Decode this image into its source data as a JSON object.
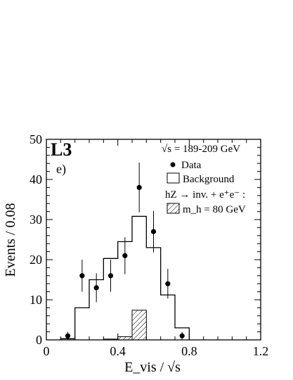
{
  "chart_data": {
    "type": "histogram",
    "experiment": "L3",
    "panel": "e)",
    "xlabel": "E_vis / √s",
    "ylabel": "Events / 0.08",
    "xlim": [
      0,
      1.2
    ],
    "ylim": [
      0,
      50
    ],
    "x_ticks": [
      "0",
      "0.4",
      "0.8",
      "1.2"
    ],
    "y_ticks": [
      "0",
      "10",
      "20",
      "30",
      "40",
      "50"
    ],
    "legend": {
      "energy": "√s = 189-209 GeV",
      "data_label": "Data",
      "background_label": "Background",
      "signal_header": "hZ → inv. + e⁺e⁻ :",
      "signal_label": "m_h = 80 GeV",
      "placement": "top-right"
    },
    "bin_edges": [
      0.08,
      0.16,
      0.24,
      0.32,
      0.4,
      0.48,
      0.56,
      0.64,
      0.72,
      0.8
    ],
    "background": [
      0.3,
      8,
      15,
      20.3,
      24.5,
      30.8,
      23,
      11.2,
      3
    ],
    "signal_bin_edges": [
      0.32,
      0.4,
      0.48,
      0.56
    ],
    "signal": [
      0.2,
      0.8,
      7.4
    ],
    "data": [
      {
        "x": 0.12,
        "y": 1,
        "err": 1.0
      },
      {
        "x": 0.2,
        "y": 16,
        "err": 4.0
      },
      {
        "x": 0.28,
        "y": 13,
        "err": 3.6
      },
      {
        "x": 0.36,
        "y": 16,
        "err": 4.0
      },
      {
        "x": 0.44,
        "y": 21,
        "err": 4.6
      },
      {
        "x": 0.52,
        "y": 38,
        "err": 6.2
      },
      {
        "x": 0.6,
        "y": 27,
        "err": 5.2
      },
      {
        "x": 0.68,
        "y": 14,
        "err": 3.7
      },
      {
        "x": 0.76,
        "y": 1,
        "err": 1.0
      }
    ]
  }
}
